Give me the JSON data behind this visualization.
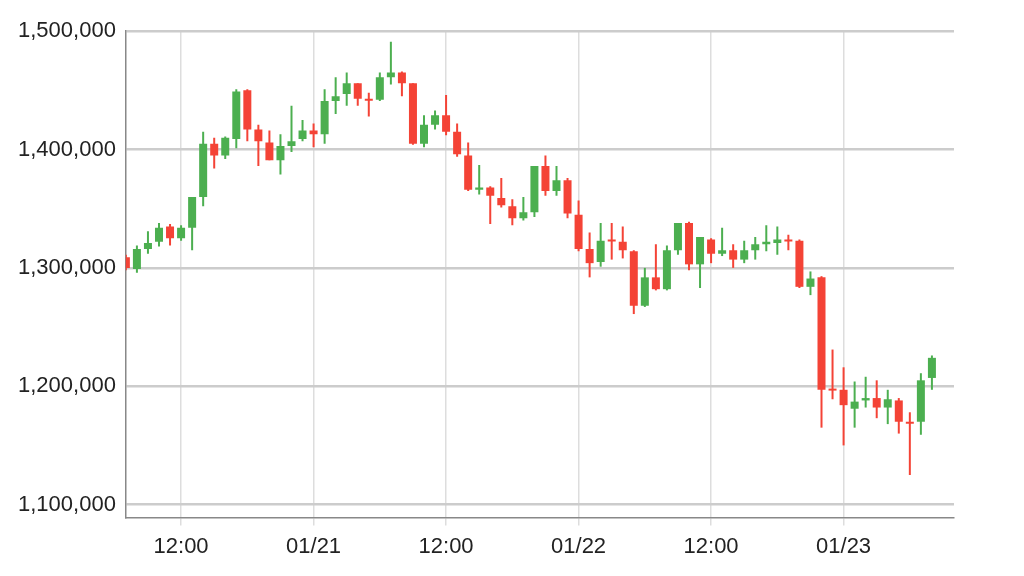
{
  "chart_data": {
    "type": "candlestick",
    "x": [
      "--01-20T07:00",
      "--01-20T08:00",
      "--01-20T09:00",
      "--01-20T10:00",
      "--01-20T11:00",
      "--01-20T12:00",
      "--01-20T13:00",
      "--01-20T14:00",
      "--01-20T15:00",
      "--01-20T16:00",
      "--01-20T17:00",
      "--01-20T18:00",
      "--01-20T19:00",
      "--01-20T20:00",
      "--01-20T21:00",
      "--01-20T22:00",
      "--01-20T23:00",
      "--01-21T00:00",
      "--01-21T01:00",
      "--01-21T02:00",
      "--01-21T03:00",
      "--01-21T04:00",
      "--01-21T05:00",
      "--01-21T06:00",
      "--01-21T07:00",
      "--01-21T08:00",
      "--01-21T09:00",
      "--01-21T10:00",
      "--01-21T11:00",
      "--01-21T12:00",
      "--01-21T13:00",
      "--01-21T14:00",
      "--01-21T15:00",
      "--01-21T16:00",
      "--01-21T17:00",
      "--01-21T18:00",
      "--01-21T19:00",
      "--01-21T20:00",
      "--01-21T21:00",
      "--01-21T22:00",
      "--01-21T23:00",
      "--01-22T00:00",
      "--01-22T01:00",
      "--01-22T02:00",
      "--01-22T03:00",
      "--01-22T04:00",
      "--01-22T05:00",
      "--01-22T06:00",
      "--01-22T07:00",
      "--01-22T08:00",
      "--01-22T09:00",
      "--01-22T10:00",
      "--01-22T11:00",
      "--01-22T12:00",
      "--01-22T13:00",
      "--01-22T14:00",
      "--01-22T15:00",
      "--01-22T16:00",
      "--01-22T17:00",
      "--01-22T18:00",
      "--01-22T19:00",
      "--01-22T20:00",
      "--01-22T21:00",
      "--01-22T22:00",
      "--01-22T23:00",
      "--01-23T00:00",
      "--01-23T01:00",
      "--01-23T02:00",
      "--01-23T03:00",
      "--01-23T04:00",
      "--01-23T05:00",
      "--01-23T06:00",
      "--01-23T07:00",
      "--01-23T08:00"
    ],
    "ohlc": [
      [
        1309000,
        1311000,
        1298000,
        1300000
      ],
      [
        1299000,
        1319000,
        1296000,
        1316000
      ],
      [
        1316000,
        1331000,
        1312000,
        1321000
      ],
      [
        1322000,
        1338000,
        1318000,
        1334000
      ],
      [
        1335000,
        1337000,
        1319000,
        1325000
      ],
      [
        1325000,
        1336000,
        1323000,
        1334000
      ],
      [
        1334000,
        1360000,
        1315000,
        1360000
      ],
      [
        1360000,
        1415000,
        1352000,
        1405000
      ],
      [
        1405000,
        1410000,
        1384000,
        1395000
      ],
      [
        1395000,
        1411000,
        1392000,
        1410000
      ],
      [
        1409000,
        1451000,
        1401000,
        1449000
      ],
      [
        1450000,
        1451000,
        1407000,
        1417000
      ],
      [
        1417000,
        1421000,
        1386000,
        1407000
      ],
      [
        1406000,
        1416000,
        1391000,
        1391000
      ],
      [
        1391000,
        1413000,
        1379000,
        1403000
      ],
      [
        1403000,
        1437000,
        1398000,
        1407000
      ],
      [
        1409000,
        1425000,
        1407000,
        1416000
      ],
      [
        1416000,
        1422000,
        1402000,
        1413000
      ],
      [
        1413000,
        1451000,
        1405000,
        1441000
      ],
      [
        1441000,
        1461000,
        1430000,
        1445000
      ],
      [
        1447000,
        1465000,
        1437000,
        1456000
      ],
      [
        1456000,
        1456000,
        1437000,
        1443000
      ],
      [
        1443000,
        1448000,
        1428000,
        1442000
      ],
      [
        1442000,
        1465000,
        1441000,
        1461000
      ],
      [
        1461000,
        1491000,
        1455000,
        1465000
      ],
      [
        1465000,
        1466000,
        1445000,
        1456000
      ],
      [
        1456000,
        1456000,
        1404000,
        1405000
      ],
      [
        1405000,
        1429000,
        1402000,
        1421000
      ],
      [
        1421000,
        1433000,
        1417000,
        1429000
      ],
      [
        1429000,
        1446000,
        1412000,
        1415000
      ],
      [
        1415000,
        1422000,
        1394000,
        1396000
      ],
      [
        1395000,
        1406000,
        1365000,
        1366000
      ],
      [
        1366000,
        1387000,
        1362000,
        1368000
      ],
      [
        1368000,
        1369000,
        1337000,
        1361000
      ],
      [
        1359000,
        1376000,
        1351000,
        1353000
      ],
      [
        1352000,
        1358000,
        1336000,
        1342000
      ],
      [
        1342000,
        1360000,
        1340000,
        1347000
      ],
      [
        1347000,
        1386000,
        1343000,
        1386000
      ],
      [
        1386000,
        1395000,
        1361000,
        1365000
      ],
      [
        1365000,
        1386000,
        1361000,
        1374000
      ],
      [
        1374000,
        1376000,
        1342000,
        1346000
      ],
      [
        1345000,
        1357000,
        1314000,
        1316000
      ],
      [
        1316000,
        1330000,
        1292000,
        1304000
      ],
      [
        1305000,
        1338000,
        1301000,
        1323000
      ],
      [
        1324000,
        1338000,
        1307000,
        1323000
      ],
      [
        1322000,
        1335000,
        1308000,
        1315000
      ],
      [
        1314000,
        1315000,
        1261000,
        1268000
      ],
      [
        1268000,
        1300000,
        1267000,
        1292000
      ],
      [
        1292000,
        1320000,
        1281000,
        1282000
      ],
      [
        1282000,
        1319000,
        1281000,
        1315000
      ],
      [
        1315000,
        1338000,
        1311000,
        1338000
      ],
      [
        1338000,
        1339000,
        1298000,
        1303000
      ],
      [
        1303000,
        1326000,
        1283000,
        1326000
      ],
      [
        1324000,
        1325000,
        1304000,
        1312000
      ],
      [
        1312000,
        1334000,
        1310000,
        1315000
      ],
      [
        1315000,
        1320000,
        1300000,
        1307000
      ],
      [
        1307000,
        1323000,
        1304000,
        1315000
      ],
      [
        1315000,
        1326000,
        1307000,
        1320000
      ],
      [
        1320000,
        1336000,
        1314000,
        1322000
      ],
      [
        1321000,
        1335000,
        1311000,
        1324000
      ],
      [
        1324000,
        1328000,
        1315000,
        1323000
      ],
      [
        1323000,
        1324000,
        1283000,
        1284000
      ],
      [
        1284000,
        1297000,
        1277000,
        1291000
      ],
      [
        1292000,
        1293000,
        1165000,
        1197000
      ],
      [
        1198000,
        1231000,
        1189000,
        1197000
      ],
      [
        1197000,
        1216000,
        1150000,
        1184000
      ],
      [
        1181000,
        1204000,
        1165000,
        1187000
      ],
      [
        1188000,
        1208000,
        1182000,
        1190000
      ],
      [
        1190000,
        1205000,
        1173000,
        1182000
      ],
      [
        1182000,
        1197000,
        1168000,
        1189000
      ],
      [
        1188000,
        1190000,
        1160000,
        1170000
      ],
      [
        1170000,
        1178000,
        1125000,
        1169000
      ],
      [
        1170000,
        1211000,
        1159000,
        1205000
      ],
      [
        1207000,
        1226000,
        1197000,
        1224000
      ]
    ],
    "colors": [
      "#f44336",
      "#4caf50",
      "#4caf50",
      "#4caf50",
      "#f44336",
      "#4caf50",
      "#4caf50",
      "#4caf50",
      "#f44336",
      "#4caf50",
      "#4caf50",
      "#f44336",
      "#f44336",
      "#f44336",
      "#4caf50",
      "#4caf50",
      "#4caf50",
      "#f44336",
      "#4caf50",
      "#4caf50",
      "#4caf50",
      "#f44336",
      "#f44336",
      "#4caf50",
      "#4caf50",
      "#f44336",
      "#f44336",
      "#4caf50",
      "#4caf50",
      "#f44336",
      "#f44336",
      "#f44336",
      "#4caf50",
      "#f44336",
      "#f44336",
      "#f44336",
      "#4caf50",
      "#4caf50",
      "#f44336",
      "#4caf50",
      "#f44336",
      "#f44336",
      "#f44336",
      "#4caf50",
      "#f44336",
      "#f44336",
      "#f44336",
      "#4caf50",
      "#f44336",
      "#4caf50",
      "#4caf50",
      "#f44336",
      "#4caf50",
      "#f44336",
      "#4caf50",
      "#f44336",
      "#4caf50",
      "#4caf50",
      "#4caf50",
      "#4caf50",
      "#f44336",
      "#f44336",
      "#4caf50",
      "#f44336",
      "#f44336",
      "#f44336",
      "#4caf50",
      "#4caf50",
      "#f44336",
      "#4caf50",
      "#f44336",
      "#f44336",
      "#4caf50",
      "#4caf50"
    ],
    "xlim": [
      "--01-20T07:00",
      "--01-23T10:00"
    ],
    "xticks": [
      {
        "value": "--01-20T12:00",
        "label": "12:00"
      },
      {
        "value": "--01-21T00:00",
        "label": "01/21"
      },
      {
        "value": "--01-21T12:00",
        "label": "12:00"
      },
      {
        "value": "--01-22T00:00",
        "label": "01/22"
      },
      {
        "value": "--01-22T12:00",
        "label": "12:00"
      },
      {
        "value": "--01-23T00:00",
        "label": "01/23"
      }
    ],
    "ylim": [
      1089000,
      1500000
    ],
    "yticks": [
      {
        "value": 1100000,
        "label": "1,100,000"
      },
      {
        "value": 1200000,
        "label": "1,200,000"
      },
      {
        "value": 1300000,
        "label": "1,300,000"
      },
      {
        "value": 1400000,
        "label": "1,400,000"
      },
      {
        "value": 1500000,
        "label": "1,500,000"
      }
    ],
    "grid": true
  }
}
